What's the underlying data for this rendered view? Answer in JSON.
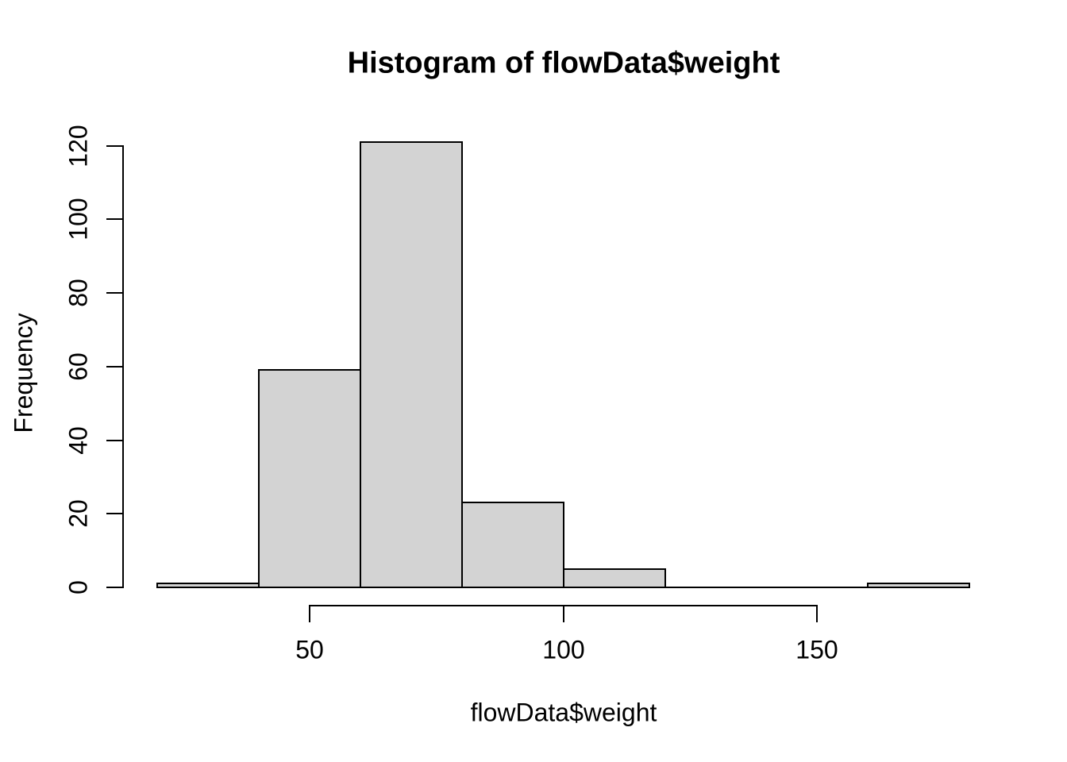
{
  "chart_data": {
    "type": "bar",
    "subtype": "histogram",
    "title": "Histogram of flowData$weight",
    "xlabel": "flowData$weight",
    "ylabel": "Frequency",
    "bin_breaks": [
      20,
      40,
      60,
      80,
      100,
      120,
      140,
      160,
      180
    ],
    "counts": [
      1,
      59,
      121,
      23,
      5,
      0,
      0,
      1
    ],
    "x_ticks": [
      50,
      100,
      150
    ],
    "y_ticks": [
      0,
      20,
      40,
      60,
      80,
      100,
      120
    ],
    "xlim": [
      20,
      180
    ],
    "ylim": [
      0,
      121
    ],
    "grid": false,
    "legend": "none",
    "bar_fill": "#d3d3d3",
    "bar_border": "#000000",
    "axis_color": "#000000",
    "text_color": "#000000",
    "background": "#ffffff"
  }
}
